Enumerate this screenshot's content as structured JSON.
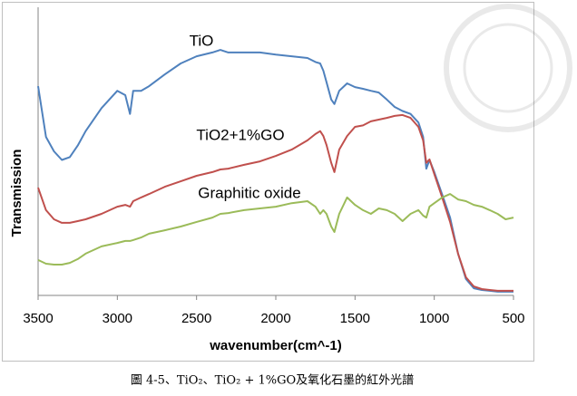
{
  "chart_data": {
    "type": "line",
    "x_label": "wavenumber(cm^-1)",
    "y_label": "Transmission",
    "caption": "圖 4-5、TiO₂、TiO₂ + 1%GO及氧化石墨的紅外光譜",
    "x": [
      3500,
      3450,
      3400,
      3350,
      3300,
      3250,
      3200,
      3100,
      3000,
      2950,
      2920,
      2900,
      2850,
      2800,
      2700,
      2600,
      2500,
      2400,
      2350,
      2300,
      2200,
      2100,
      2000,
      1900,
      1800,
      1750,
      1720,
      1700,
      1680,
      1650,
      1630,
      1600,
      1550,
      1500,
      1450,
      1400,
      1350,
      1300,
      1250,
      1200,
      1150,
      1100,
      1070,
      1050,
      1030,
      1000,
      950,
      900,
      850,
      800,
      750,
      700,
      650,
      600,
      550,
      500
    ],
    "series": [
      {
        "name": "TiO",
        "color": "#4f81bd",
        "values": [
          72.6,
          55,
          50,
          47,
          48,
          52,
          57,
          65,
          71,
          69.5,
          63,
          71,
          71,
          72.6,
          76.7,
          80.5,
          83,
          84.3,
          85.2,
          84.3,
          84.3,
          84.3,
          83.6,
          83,
          82.4,
          81,
          80.5,
          78,
          74,
          68,
          66.4,
          71,
          73.6,
          72.3,
          71.7,
          71,
          70.4,
          68,
          65.4,
          64,
          63,
          60,
          55,
          44,
          47,
          42.8,
          35,
          27,
          14.5,
          5.7,
          2.5,
          1.9,
          1.6,
          1.3,
          1.3,
          1.3
        ]
      },
      {
        "name": "TiO2+1%GO",
        "color": "#c0504d",
        "values": [
          37.4,
          29.6,
          26.4,
          25.2,
          25.2,
          25.8,
          26.4,
          28.3,
          30.8,
          31.4,
          30.8,
          32.7,
          34,
          35.2,
          37.7,
          39.6,
          41.5,
          42.8,
          43.7,
          44,
          45.3,
          46.5,
          48.4,
          50.6,
          53.8,
          56,
          57,
          55.3,
          52.2,
          46,
          42.8,
          50.6,
          55.3,
          58.5,
          59,
          60.4,
          61,
          61.6,
          62.3,
          62.6,
          61.6,
          58.5,
          53.8,
          46,
          47.2,
          42.1,
          34,
          25.5,
          14.5,
          6.3,
          3.1,
          2.2,
          1.9,
          1.6,
          1.6,
          1.6
        ]
      },
      {
        "name": "Graphitic oxide",
        "color": "#9bbb59",
        "values": [
          12.3,
          11,
          10.7,
          10.7,
          11.3,
          12.6,
          14.5,
          17,
          18.2,
          18.9,
          18.9,
          19.2,
          20.1,
          21.4,
          22.6,
          23.9,
          25.5,
          27,
          28.3,
          28.6,
          29.6,
          30.2,
          30.8,
          32,
          32.7,
          30.8,
          28.3,
          29.6,
          28.3,
          23.9,
          22,
          28.3,
          34,
          31.4,
          29.6,
          28.3,
          30.2,
          29.6,
          28.3,
          25.8,
          28.3,
          29.6,
          27.7,
          27,
          30.8,
          32,
          34,
          35.2,
          33.3,
          32.7,
          31.4,
          30.8,
          29.6,
          28.3,
          26.4,
          27
        ]
      }
    ],
    "xlim": [
      3500,
      500
    ],
    "xticks": [
      3500,
      3000,
      2500,
      2000,
      1500,
      1000,
      500
    ],
    "ylim": [
      0,
      100
    ]
  }
}
